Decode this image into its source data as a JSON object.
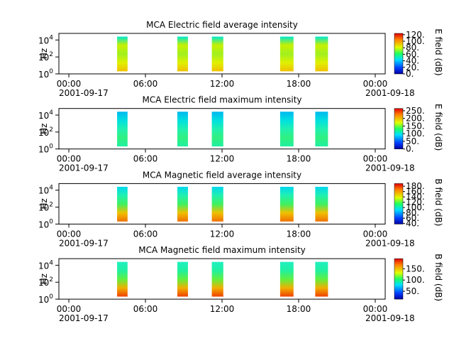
{
  "chart_data": [
    {
      "type": "spectrogram",
      "title": "MCA  Electric field average intensity",
      "ylabel": "Hz",
      "colorbar_label": "E field (dB)",
      "xlim": [
        -0.78,
        24.78
      ],
      "xticks": [
        {
          "value": 0,
          "label": "00:00"
        },
        {
          "value": 6,
          "label": "06:00"
        },
        {
          "value": 12,
          "label": "12:00"
        },
        {
          "value": 18,
          "label": "18:00"
        },
        {
          "value": 24,
          "label": "00:00"
        }
      ],
      "date_labels": [
        {
          "value": 0,
          "label": "2001-09-17"
        },
        {
          "value": 24,
          "label": "2001-09-18"
        }
      ],
      "log_y": true,
      "ylim": [
        1,
        60000
      ],
      "yticks": [
        {
          "value": 1,
          "label": "10",
          "exponent": "0"
        },
        {
          "value": 100,
          "label": "10",
          "exponent": "2"
        },
        {
          "value": 10000,
          "label": "10",
          "exponent": "4"
        }
      ],
      "clim": [
        0,
        124
      ],
      "cticks": [
        {
          "value": 0,
          "label": "0."
        },
        {
          "value": 20,
          "label": "20."
        },
        {
          "value": 40,
          "label": "40."
        },
        {
          "value": 60,
          "label": "60."
        },
        {
          "value": 80,
          "label": "80."
        },
        {
          "value": 100,
          "label": "100."
        },
        {
          "value": 120,
          "label": "120."
        }
      ],
      "segments": [
        [
          3.78,
          4.6
        ],
        [
          8.5,
          9.33
        ],
        [
          11.2,
          12.1
        ],
        [
          16.55,
          17.6
        ],
        [
          19.3,
          20.3
        ]
      ],
      "freq_range": [
        2,
        25000
      ],
      "segment_colors": [
        "#f0c000",
        "#e0f000",
        "#a0f020",
        "#c8f000",
        "#00e8d0"
      ]
    },
    {
      "type": "spectrogram",
      "title": "MCA  Electric field maximum intensity",
      "ylabel": "Hz",
      "colorbar_label": "E field (dB)",
      "xlim": [
        -0.78,
        24.78
      ],
      "xticks": [
        {
          "value": 0,
          "label": "00:00"
        },
        {
          "value": 6,
          "label": "06:00"
        },
        {
          "value": 12,
          "label": "12:00"
        },
        {
          "value": 18,
          "label": "18:00"
        },
        {
          "value": 24,
          "label": "00:00"
        }
      ],
      "date_labels": [
        {
          "value": 0,
          "label": "2001-09-17"
        },
        {
          "value": 24,
          "label": "2001-09-18"
        }
      ],
      "log_y": true,
      "ylim": [
        1,
        60000
      ],
      "yticks": [
        {
          "value": 1,
          "label": "10",
          "exponent": "0"
        },
        {
          "value": 100,
          "label": "10",
          "exponent": "2"
        },
        {
          "value": 10000,
          "label": "10",
          "exponent": "4"
        }
      ],
      "clim": [
        0,
        265
      ],
      "cticks": [
        {
          "value": 0,
          "label": "0."
        },
        {
          "value": 50,
          "label": "50."
        },
        {
          "value": 100,
          "label": "100."
        },
        {
          "value": 150,
          "label": "150."
        },
        {
          "value": 200,
          "label": "200."
        },
        {
          "value": 250,
          "label": "250."
        }
      ],
      "segments": [
        [
          3.78,
          4.6
        ],
        [
          8.5,
          9.33
        ],
        [
          11.2,
          12.1
        ],
        [
          16.55,
          17.6
        ],
        [
          19.3,
          20.3
        ]
      ],
      "freq_range": [
        2,
        25000
      ],
      "segment_colors": [
        "#20f0a0",
        "#30f080",
        "#20f0b0",
        "#00e0e0",
        "#00b8f0"
      ]
    },
    {
      "type": "spectrogram",
      "title": "MCA  Magnetic field average intensity",
      "ylabel": "Hz",
      "colorbar_label": "B field (dB)",
      "xlim": [
        -0.78,
        24.78
      ],
      "xticks": [
        {
          "value": 0,
          "label": "00:00"
        },
        {
          "value": 6,
          "label": "06:00"
        },
        {
          "value": 12,
          "label": "12:00"
        },
        {
          "value": 18,
          "label": "18:00"
        },
        {
          "value": 24,
          "label": "00:00"
        }
      ],
      "date_labels": [
        {
          "value": 0,
          "label": "2001-09-17"
        },
        {
          "value": 24,
          "label": "2001-09-18"
        }
      ],
      "log_y": true,
      "ylim": [
        1,
        60000
      ],
      "yticks": [
        {
          "value": 1,
          "label": "10",
          "exponent": "0"
        },
        {
          "value": 100,
          "label": "10",
          "exponent": "2"
        },
        {
          "value": 10000,
          "label": "10",
          "exponent": "4"
        }
      ],
      "clim": [
        38,
        190
      ],
      "cticks": [
        {
          "value": 40,
          "label": "40."
        },
        {
          "value": 60,
          "label": "60."
        },
        {
          "value": 80,
          "label": "80."
        },
        {
          "value": 100,
          "label": "100."
        },
        {
          "value": 120,
          "label": "120."
        },
        {
          "value": 140,
          "label": "140."
        },
        {
          "value": 160,
          "label": "160."
        },
        {
          "value": 180,
          "label": "180."
        }
      ],
      "segments": [
        [
          3.78,
          4.6
        ],
        [
          8.5,
          9.33
        ],
        [
          11.2,
          12.1
        ],
        [
          16.55,
          17.6
        ],
        [
          19.3,
          20.3
        ]
      ],
      "freq_range": [
        2,
        25000
      ],
      "segment_colors": [
        "#f07000",
        "#f0c000",
        "#40f060",
        "#20f0b0",
        "#00d8f0"
      ]
    },
    {
      "type": "spectrogram",
      "title": "MCA  Magnetic field maximum intensity",
      "ylabel": "Hz",
      "colorbar_label": "B field (dB)",
      "xlim": [
        -0.78,
        24.78
      ],
      "xticks": [
        {
          "value": 0,
          "label": "00:00"
        },
        {
          "value": 6,
          "label": "06:00"
        },
        {
          "value": 12,
          "label": "12:00"
        },
        {
          "value": 18,
          "label": "18:00"
        },
        {
          "value": 24,
          "label": "00:00"
        }
      ],
      "date_labels": [
        {
          "value": 0,
          "label": "2001-09-17"
        },
        {
          "value": 24,
          "label": "2001-09-18"
        }
      ],
      "log_y": true,
      "ylim": [
        1,
        60000
      ],
      "yticks": [
        {
          "value": 1,
          "label": "10",
          "exponent": "0"
        },
        {
          "value": 100,
          "label": "10",
          "exponent": "2"
        },
        {
          "value": 10000,
          "label": "10",
          "exponent": "4"
        }
      ],
      "clim": [
        15,
        195
      ],
      "cticks": [
        {
          "value": 50,
          "label": "50."
        },
        {
          "value": 100,
          "label": "100."
        },
        {
          "value": 150,
          "label": "150."
        }
      ],
      "segments": [
        [
          3.78,
          4.6
        ],
        [
          8.5,
          9.33
        ],
        [
          11.2,
          12.1
        ],
        [
          16.55,
          17.6
        ],
        [
          19.3,
          20.3
        ]
      ],
      "freq_range": [
        2,
        25000
      ],
      "segment_colors": [
        "#f04000",
        "#f0b000",
        "#60f040",
        "#20f0a0",
        "#20f0c0"
      ]
    }
  ]
}
